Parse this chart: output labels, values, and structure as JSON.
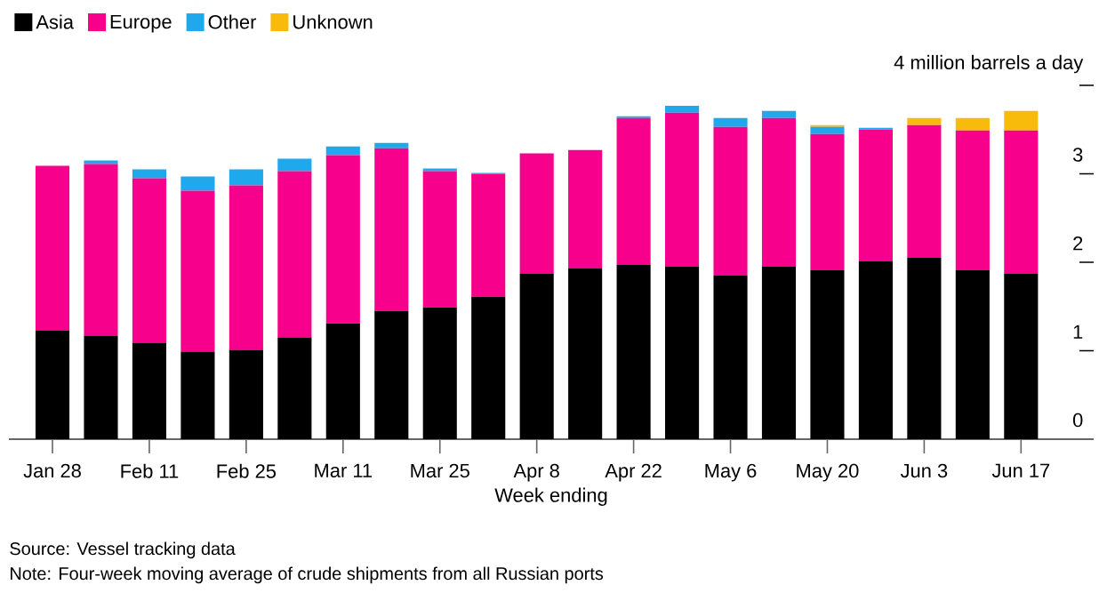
{
  "chart_data": {
    "type": "bar",
    "stacked": true,
    "categories": [
      "Jan 28",
      null,
      "Feb 11",
      null,
      "Feb 25",
      null,
      "Mar 11",
      null,
      "Mar 25",
      null,
      "Apr 8",
      null,
      "Apr 22",
      null,
      "May 6",
      null,
      "May 20",
      null,
      "Jun 3",
      null,
      "Jun 17"
    ],
    "series": [
      {
        "name": "Asia",
        "color": "#000000",
        "values": [
          1.23,
          1.17,
          1.09,
          0.99,
          1.01,
          1.15,
          1.31,
          1.45,
          1.49,
          1.61,
          1.87,
          1.93,
          1.97,
          1.95,
          1.85,
          1.95,
          1.91,
          2.01,
          2.05,
          1.91,
          1.87
        ]
      },
      {
        "name": "Europe",
        "color": "#f7008c",
        "values": [
          1.86,
          1.94,
          1.86,
          1.82,
          1.86,
          1.88,
          1.9,
          1.84,
          1.54,
          1.39,
          1.36,
          1.34,
          1.66,
          1.74,
          1.68,
          1.68,
          1.54,
          1.49,
          1.5,
          1.58,
          1.62
        ]
      },
      {
        "name": "Other",
        "color": "#1fa8ec",
        "values": [
          0,
          0.04,
          0.1,
          0.16,
          0.18,
          0.14,
          0.1,
          0.06,
          0.03,
          0.01,
          0,
          0,
          0.02,
          0.08,
          0.1,
          0.08,
          0.08,
          0.02,
          0,
          0,
          0
        ]
      },
      {
        "name": "Unknown",
        "color": "#f8bb0c",
        "values": [
          0,
          0,
          0,
          0,
          0,
          0,
          0,
          0,
          0,
          0,
          0,
          0,
          0,
          0,
          0,
          0,
          0.02,
          0,
          0.08,
          0.14,
          0.22
        ]
      }
    ],
    "ylim": [
      0,
      4
    ],
    "yticks": [
      0,
      1,
      2,
      3,
      {
        "value": 4,
        "label": "4 million barrels a day"
      }
    ],
    "xlabel": "Week ending",
    "legend": "top left",
    "grid": false,
    "annotations": [
      "Source: Vessel tracking data",
      "Note: Four-week moving average of crude shipments from all Russian ports"
    ]
  }
}
